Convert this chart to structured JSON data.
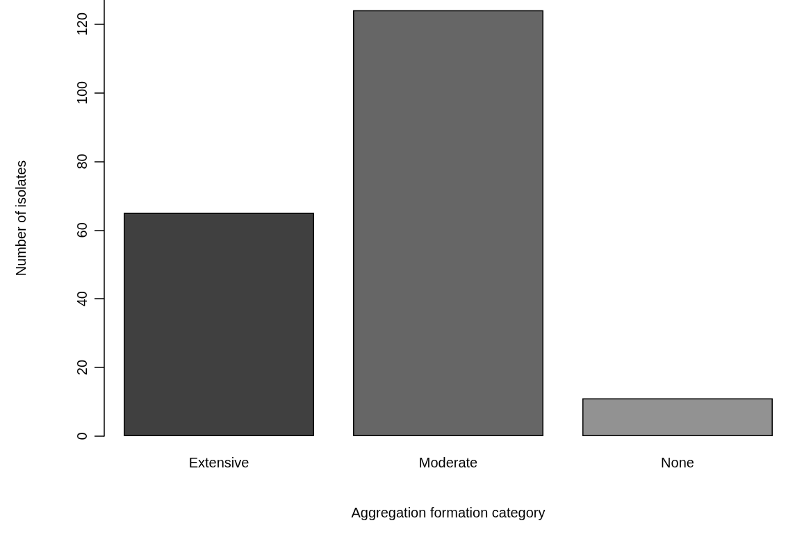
{
  "chart_data": {
    "type": "bar",
    "xlabel": "Aggregation formation category",
    "ylabel": "Number of isolates",
    "categories": [
      "Extensive",
      "Moderate",
      "None"
    ],
    "values": [
      65,
      124,
      11
    ],
    "colors": [
      "#404040",
      "#666666",
      "#929292"
    ],
    "ylim": [
      0,
      127
    ],
    "yticks": [
      0,
      20,
      40,
      60,
      80,
      100,
      120
    ],
    "grid": false
  }
}
